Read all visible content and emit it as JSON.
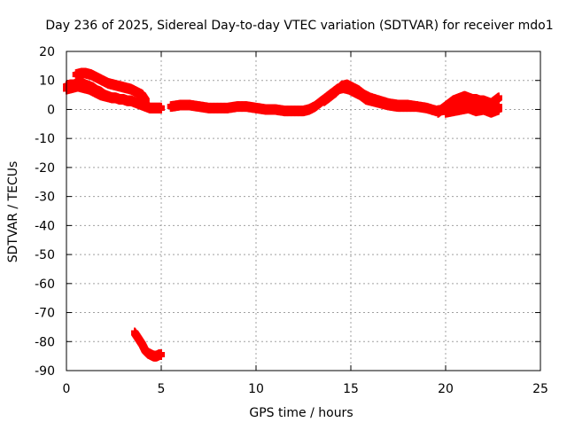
{
  "chart_data": {
    "type": "scatter",
    "title": "Day 236 of 2025, Sidereal Day-to-day VTEC variation (SDTVAR) for receiver mdo1",
    "xlabel": "GPS time / hours",
    "ylabel": "SDTVAR / TECUs",
    "xlim": [
      0,
      25
    ],
    "ylim": [
      -90,
      20
    ],
    "xticks": [
      0,
      5,
      10,
      15,
      20,
      25
    ],
    "yticks": [
      20,
      10,
      0,
      -10,
      -20,
      -30,
      -40,
      -50,
      -60,
      -70,
      -80,
      -90
    ],
    "grid": true,
    "marker": "plus",
    "color": "#ff0000",
    "series": [
      {
        "name": "track-upper-start",
        "x": [
          0.5,
          0.8,
          1.0,
          1.3,
          1.6,
          1.9,
          2.2,
          2.5,
          2.8,
          3.1,
          3.4,
          3.7,
          4.0,
          4.2
        ],
        "y": [
          12,
          12.5,
          12.5,
          12,
          11,
          10,
          9,
          8.5,
          8,
          7.5,
          7,
          6,
          5,
          3
        ]
      },
      {
        "name": "track-lower-start",
        "x": [
          0.0,
          0.2,
          0.4,
          0.6,
          0.8,
          1.0,
          1.2,
          1.4,
          1.6,
          1.8,
          2.0,
          2.2,
          2.4,
          2.6,
          2.8,
          3.0,
          3.2,
          3.4,
          3.6,
          3.8,
          4.0,
          4.2,
          4.4,
          4.6,
          4.8,
          5.0
        ],
        "y": [
          8,
          8.5,
          8.5,
          9,
          9,
          8.5,
          8,
          7.5,
          6.5,
          6,
          5,
          4.5,
          4,
          4,
          3.5,
          3.5,
          3,
          3,
          2.5,
          2,
          1.5,
          1,
          0.5,
          0.5,
          0.5,
          0.5
        ]
      },
      {
        "name": "track-lower-start-band",
        "x": [
          0.0,
          0.3,
          0.6,
          0.9,
          1.2,
          1.5,
          1.8,
          2.1,
          2.4
        ],
        "y": [
          7,
          7.5,
          8,
          7.5,
          7,
          6,
          5,
          4.5,
          4
        ]
      },
      {
        "name": "track-main",
        "x": [
          5.5,
          6.0,
          6.5,
          7.0,
          7.5,
          8.0,
          8.5,
          9.0,
          9.5,
          10.0,
          10.5,
          11.0,
          11.5,
          12.0,
          12.5,
          12.8,
          13.1,
          13.4,
          13.7,
          14.0,
          14.3,
          14.6,
          14.9,
          15.2,
          15.5,
          15.8,
          16.1,
          16.4,
          16.7,
          17.0,
          17.5,
          18.0,
          18.5,
          19.0,
          19.5,
          20.0,
          20.5,
          21.0,
          21.5,
          22.0,
          22.5,
          22.8
        ],
        "y": [
          1,
          1.5,
          1.5,
          1,
          0.5,
          0.5,
          0.5,
          1,
          1,
          0.5,
          0,
          0,
          -0.5,
          -0.5,
          -0.5,
          0,
          1,
          2.5,
          4,
          5.5,
          7,
          7.5,
          7,
          6,
          5,
          3.5,
          3,
          2.5,
          2,
          1.5,
          1,
          1,
          1,
          0.5,
          -0.5,
          0,
          1,
          2,
          2.5,
          1.5,
          0.5,
          1
        ]
      },
      {
        "name": "track-main-band",
        "x": [
          13.6,
          13.9,
          14.2,
          14.5,
          14.8,
          15.1,
          15.4,
          15.7,
          16.0,
          16.5,
          17.0,
          17.5,
          18.0,
          18.5
        ],
        "y": [
          3,
          4.5,
          6,
          8,
          8.5,
          7.5,
          6.5,
          5,
          4,
          3,
          2,
          1.5,
          1.5,
          1
        ]
      },
      {
        "name": "track-end-cluster",
        "x": [
          19.6,
          19.8,
          20.0,
          20.2,
          20.4,
          20.6,
          20.8,
          21.0,
          21.2,
          21.4,
          21.6,
          21.8,
          22.0,
          22.2,
          22.4,
          22.6,
          22.8
        ],
        "y": [
          -1,
          0,
          1,
          2,
          3,
          3.5,
          4,
          4.5,
          4,
          3.5,
          3.5,
          3,
          3,
          2.5,
          2,
          3,
          4
        ]
      },
      {
        "name": "track-end-cluster-low",
        "x": [
          20.0,
          20.4,
          20.8,
          21.2,
          21.6,
          22.0,
          22.4,
          22.8
        ],
        "y": [
          -1,
          -0.5,
          0,
          0.5,
          -0.5,
          0,
          -1,
          0
        ]
      },
      {
        "name": "track-negative",
        "x": [
          3.6,
          3.8,
          4.0,
          4.15,
          4.3,
          4.45,
          4.6,
          4.75,
          4.9,
          5.0
        ],
        "y": [
          -77,
          -79,
          -81,
          -83,
          -84,
          -84.5,
          -85,
          -85,
          -84.5,
          -84.5
        ]
      }
    ]
  }
}
